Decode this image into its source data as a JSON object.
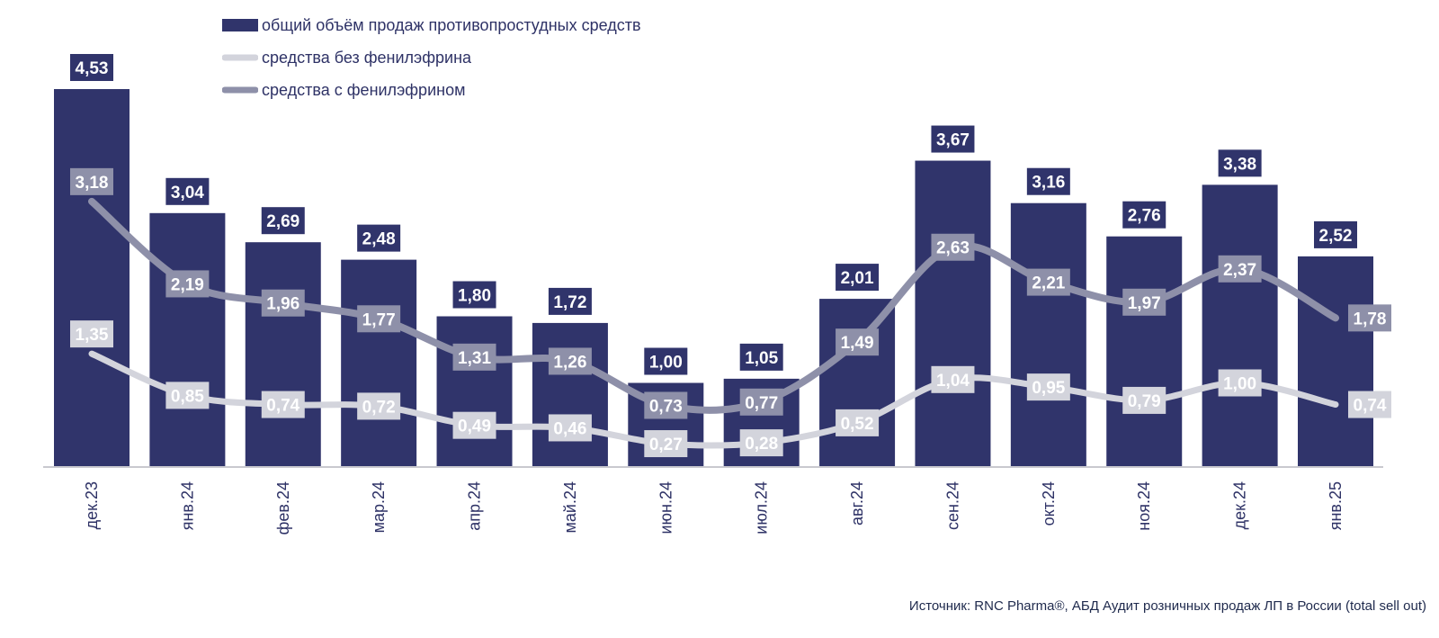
{
  "chart_data": {
    "type": "bar",
    "categories": [
      "дек.23",
      "янв.24",
      "фев.24",
      "мар.24",
      "апр.24",
      "май.24",
      "июн.24",
      "июл.24",
      "авг.24",
      "сен.24",
      "окт.24",
      "ноя.24",
      "дек.24",
      "янв.25"
    ],
    "series": [
      {
        "name": "общий объём продаж противопростудных средств",
        "type": "bar",
        "color": "#30346b",
        "values": [
          4.53,
          3.04,
          2.69,
          2.48,
          1.8,
          1.72,
          1.0,
          1.05,
          2.01,
          3.67,
          3.16,
          2.76,
          3.38,
          2.52
        ],
        "labels": [
          "4,53",
          "3,04",
          "2,69",
          "2,48",
          "1,80",
          "1,72",
          "1,00",
          "1,05",
          "2,01",
          "3,67",
          "3,16",
          "2,76",
          "3,38",
          "2,52"
        ]
      },
      {
        "name": "средства без фенилэфрина",
        "type": "line",
        "color": "#d3d4dc",
        "values": [
          1.35,
          0.85,
          0.74,
          0.72,
          0.49,
          0.46,
          0.27,
          0.28,
          0.52,
          1.04,
          0.95,
          0.79,
          1.0,
          0.74
        ],
        "labels": [
          "1,35",
          "0,85",
          "0,74",
          "0,72",
          "0,49",
          "0,46",
          "0,27",
          "0,28",
          "0,52",
          "1,04",
          "0,95",
          "0,79",
          "1,00",
          "0,74"
        ]
      },
      {
        "name": "средства с фенилэфрином",
        "type": "line",
        "color": "#8e90a9",
        "values": [
          3.18,
          2.19,
          1.96,
          1.77,
          1.31,
          1.26,
          0.73,
          0.77,
          1.49,
          2.63,
          2.21,
          1.97,
          2.37,
          1.78
        ],
        "labels": [
          "3,18",
          "2,19",
          "1,96",
          "1,77",
          "1,31",
          "1,26",
          "0,73",
          "0,77",
          "1,49",
          "2,63",
          "2,21",
          "1,97",
          "2,37",
          "1,78"
        ]
      }
    ],
    "ylim": [
      0,
      4.53
    ],
    "grid": false,
    "legend_position": "top-left",
    "source": "Источник: RNC Pharma®, АБД Аудит розничных продаж ЛП в России (total sell out)"
  }
}
